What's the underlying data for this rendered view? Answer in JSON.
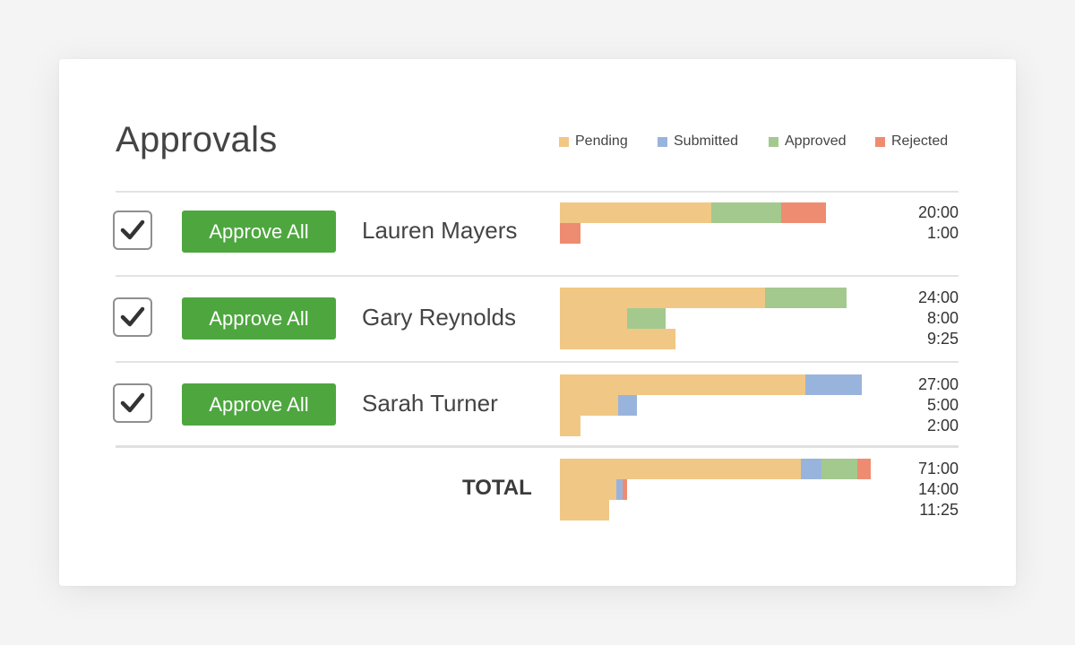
{
  "title": "Approvals",
  "legend": [
    {
      "label": "Pending",
      "color": "#f1c785"
    },
    {
      "label": "Submitted",
      "color": "#99b4dc"
    },
    {
      "label": "Approved",
      "color": "#a3c98f"
    },
    {
      "label": "Rejected",
      "color": "#ee8c72"
    }
  ],
  "approve_label": "Approve All",
  "rows": [
    {
      "name": "Lauren Mayers",
      "checked": true,
      "lines": [
        {
          "time": "20:00",
          "segments": [
            {
              "status": "pending",
              "value": 10.2
            },
            {
              "status": "approved",
              "value": 4.7
            },
            {
              "status": "rejected",
              "value": 3.0
            }
          ]
        },
        {
          "time": "1:00",
          "segments": [
            {
              "status": "rejected",
              "value": 1.4
            }
          ]
        }
      ]
    },
    {
      "name": "Gary Reynolds",
      "checked": true,
      "lines": [
        {
          "time": "24:00",
          "segments": [
            {
              "status": "pending",
              "value": 13.8
            },
            {
              "status": "approved",
              "value": 5.5
            }
          ]
        },
        {
          "time": "8:00",
          "segments": [
            {
              "status": "pending",
              "value": 4.5
            },
            {
              "status": "approved",
              "value": 2.6
            }
          ]
        },
        {
          "time": "9:25",
          "segments": [
            {
              "status": "pending",
              "value": 7.8
            }
          ]
        }
      ]
    },
    {
      "name": "Sarah Turner",
      "checked": true,
      "lines": [
        {
          "time": "27:00",
          "segments": [
            {
              "status": "pending",
              "value": 16.5
            },
            {
              "status": "submitted",
              "value": 3.8
            }
          ]
        },
        {
          "time": "5:00",
          "segments": [
            {
              "status": "pending",
              "value": 3.9
            },
            {
              "status": "submitted",
              "value": 1.3
            }
          ]
        },
        {
          "time": "2:00",
          "segments": [
            {
              "status": "pending",
              "value": 1.4
            }
          ]
        }
      ]
    }
  ],
  "total": {
    "label": "TOTAL",
    "lines": [
      {
        "time": "71:00",
        "segments": [
          {
            "status": "pending",
            "value": 16.2
          },
          {
            "status": "submitted",
            "value": 1.4
          },
          {
            "status": "approved",
            "value": 2.4
          },
          {
            "status": "rejected",
            "value": 0.9
          }
        ]
      },
      {
        "time": "14:00",
        "segments": [
          {
            "status": "pending",
            "value": 3.8
          },
          {
            "status": "submitted",
            "value": 0.4
          },
          {
            "status": "rejected",
            "value": 0.3
          }
        ]
      },
      {
        "time": "11:25",
        "segments": [
          {
            "status": "pending",
            "value": 3.3
          }
        ]
      }
    ]
  },
  "colors": {
    "pending": "#f1c785",
    "submitted": "#99b4dc",
    "approved": "#a3c98f",
    "rejected": "#ee8c72",
    "button": "#4ea63f"
  }
}
